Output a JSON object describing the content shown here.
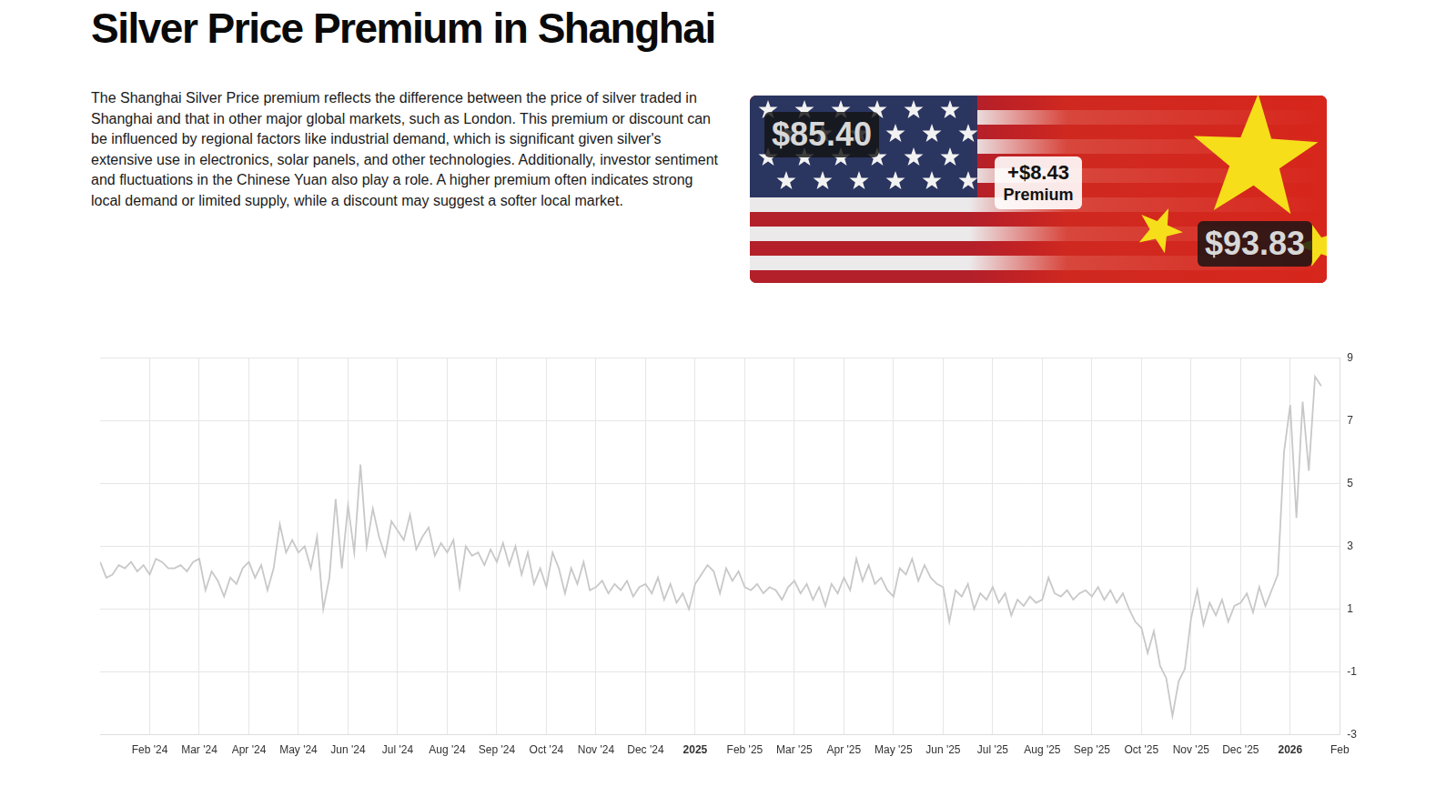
{
  "title": "Silver Price Premium in Shanghai",
  "description": "The Shanghai Silver Price premium reflects the difference between the price of silver traded in Shanghai and that in other major global markets, such as London. This premium or discount can be influenced by regional factors like industrial demand, which is significant given silver's extensive use in electronics, solar panels, and other technologies. Additionally, investor sentiment and fluctuations in the Chinese Yuan also play a role. A higher premium often indicates strong local demand or limited supply, while a discount may suggest a softer local market.",
  "banner": {
    "left_price": "$85.40",
    "premium": "+$8.43",
    "premium_label": "Premium",
    "right_price": "$93.83"
  },
  "chart_data": {
    "type": "line",
    "color": "#c8c8c8",
    "grid": true,
    "categories": [
      null,
      null,
      null,
      null,
      null,
      null,
      null,
      null,
      "Feb '24",
      null,
      null,
      null,
      null,
      null,
      null,
      null,
      "Mar '24",
      null,
      null,
      null,
      null,
      null,
      null,
      null,
      "Apr '24",
      null,
      null,
      null,
      null,
      null,
      null,
      null,
      "May '24",
      null,
      null,
      null,
      null,
      null,
      null,
      null,
      "Jun '24",
      null,
      null,
      null,
      null,
      null,
      null,
      null,
      "Jul '24",
      null,
      null,
      null,
      null,
      null,
      null,
      null,
      "Aug '24",
      null,
      null,
      null,
      null,
      null,
      null,
      null,
      "Sep '24",
      null,
      null,
      null,
      null,
      null,
      null,
      null,
      "Oct '24",
      null,
      null,
      null,
      null,
      null,
      null,
      null,
      "Nov '24",
      null,
      null,
      null,
      null,
      null,
      null,
      null,
      "Dec '24",
      null,
      null,
      null,
      null,
      null,
      null,
      null,
      "2025",
      null,
      null,
      null,
      null,
      null,
      null,
      null,
      "Feb '25",
      null,
      null,
      null,
      null,
      null,
      null,
      null,
      "Mar '25",
      null,
      null,
      null,
      null,
      null,
      null,
      null,
      "Apr '25",
      null,
      null,
      null,
      null,
      null,
      null,
      null,
      "May '25",
      null,
      null,
      null,
      null,
      null,
      null,
      null,
      "Jun '25",
      null,
      null,
      null,
      null,
      null,
      null,
      null,
      "Jul '25",
      null,
      null,
      null,
      null,
      null,
      null,
      null,
      "Aug '25",
      null,
      null,
      null,
      null,
      null,
      null,
      null,
      "Sep '25",
      null,
      null,
      null,
      null,
      null,
      null,
      null,
      "Oct '25",
      null,
      null,
      null,
      null,
      null,
      null,
      null,
      "Nov '25",
      null,
      null,
      null,
      null,
      null,
      null,
      null,
      "Dec '25",
      null,
      null,
      null,
      null,
      null,
      null,
      null,
      "2026",
      null,
      null,
      null,
      null,
      null,
      null,
      null,
      "Feb"
    ],
    "values": [
      2.5,
      2.0,
      2.1,
      2.4,
      2.3,
      2.5,
      2.2,
      2.4,
      2.1,
      2.6,
      2.5,
      2.3,
      2.3,
      2.4,
      2.2,
      2.5,
      2.6,
      1.6,
      2.2,
      1.9,
      1.4,
      2.0,
      1.8,
      2.3,
      2.5,
      2.0,
      2.4,
      1.6,
      2.3,
      3.7,
      2.8,
      3.2,
      2.8,
      3.0,
      2.3,
      3.3,
      1.0,
      2.0,
      4.5,
      2.3,
      4.3,
      2.8,
      5.6,
      3.0,
      4.2,
      3.3,
      2.7,
      3.8,
      3.5,
      3.2,
      4.0,
      2.9,
      3.3,
      3.6,
      2.7,
      3.1,
      2.8,
      3.2,
      1.7,
      3.0,
      2.7,
      2.8,
      2.4,
      2.9,
      2.5,
      3.1,
      2.4,
      3.0,
      2.1,
      2.8,
      1.8,
      2.3,
      1.7,
      2.8,
      2.3,
      1.5,
      2.3,
      1.8,
      2.5,
      1.6,
      1.7,
      1.9,
      1.5,
      1.8,
      1.6,
      1.9,
      1.4,
      1.7,
      1.8,
      1.5,
      2.0,
      1.3,
      1.8,
      1.2,
      1.5,
      1.0,
      1.8,
      2.1,
      2.4,
      2.2,
      1.5,
      2.3,
      1.9,
      2.2,
      1.7,
      1.6,
      1.8,
      1.5,
      1.7,
      1.6,
      1.3,
      1.7,
      1.9,
      1.5,
      1.8,
      1.3,
      1.7,
      1.1,
      1.8,
      1.5,
      2.0,
      1.6,
      2.6,
      1.9,
      2.4,
      1.8,
      2.0,
      1.6,
      1.4,
      2.3,
      2.1,
      2.6,
      1.9,
      2.4,
      2.0,
      1.8,
      1.7,
      0.6,
      1.6,
      1.4,
      1.8,
      1.0,
      1.5,
      1.3,
      1.7,
      1.2,
      1.5,
      0.8,
      1.3,
      1.1,
      1.4,
      1.2,
      1.3,
      2.0,
      1.5,
      1.4,
      1.6,
      1.3,
      1.5,
      1.6,
      1.4,
      1.7,
      1.3,
      1.6,
      1.2,
      1.5,
      1.0,
      0.6,
      0.4,
      -0.4,
      0.3,
      -0.8,
      -1.2,
      -2.4,
      -1.3,
      -0.9,
      0.7,
      1.6,
      0.5,
      1.2,
      0.8,
      1.3,
      0.6,
      1.1,
      1.2,
      1.5,
      0.9,
      1.7,
      1.1,
      1.6,
      2.1,
      6.0,
      7.5,
      3.9,
      7.6,
      5.4,
      8.4,
      8.1,
      null,
      null,
      null
    ],
    "ylim": [
      -3,
      9
    ],
    "yticks": [
      -3,
      -1,
      1,
      3,
      5,
      7,
      9
    ]
  }
}
